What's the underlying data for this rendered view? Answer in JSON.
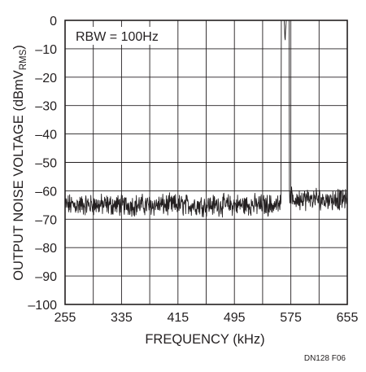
{
  "chart_data": {
    "type": "line",
    "title": "",
    "xlabel": "FREQUENCY (kHz)",
    "ylabel": {
      "main": "OUTPUT NOISE VOLTAGE (dBmV",
      "sub": "RMS",
      "close": ")"
    },
    "annotation": "RBW = 100Hz",
    "figure_id": "DN128 F06",
    "xlim": [
      255,
      655
    ],
    "ylim": [
      -100,
      0
    ],
    "xticks": [
      255,
      335,
      415,
      495,
      575,
      655
    ],
    "yticks": [
      0,
      -10,
      -20,
      -30,
      -40,
      -50,
      -60,
      -70,
      -80,
      -90,
      -100
    ],
    "xtick_labels": [
      "255",
      "335",
      "415",
      "495",
      "575",
      "655"
    ],
    "ytick_labels": [
      "0",
      "–10",
      "–20",
      "–30",
      "–40",
      "–50",
      "–60",
      "–70",
      "–80",
      "–90",
      "–100"
    ],
    "grid": true,
    "line_color": "#231f20",
    "series": [
      {
        "noise_floor_db": -65,
        "noise_floor_right_db": -63,
        "noise_spread_db": 3,
        "peak": {
          "x": 567,
          "y": -5
        },
        "x_step": 0.5,
        "seed": 12345
      }
    ]
  }
}
